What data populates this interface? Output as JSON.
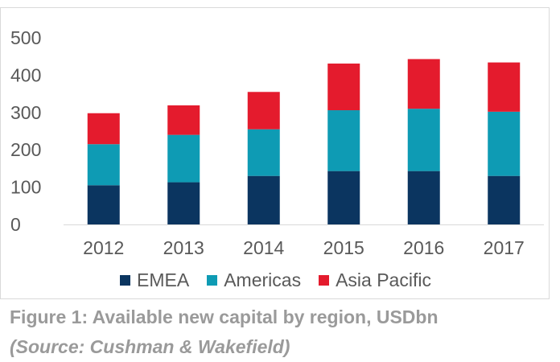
{
  "chart_data": {
    "type": "bar",
    "stacked": true,
    "categories": [
      "2012",
      "2013",
      "2014",
      "2015",
      "2016",
      "2017"
    ],
    "series": [
      {
        "name": "EMEA",
        "color": "#0b3560",
        "values": [
          105,
          113,
          130,
          143,
          143,
          130
        ]
      },
      {
        "name": "Americas",
        "color": "#0e9bb4",
        "values": [
          110,
          127,
          125,
          163,
          167,
          172
        ]
      },
      {
        "name": "Asia Pacific",
        "color": "#e41b2d",
        "values": [
          83,
          79,
          100,
          125,
          133,
          132
        ]
      }
    ],
    "yticks": [
      0,
      100,
      200,
      300,
      400,
      500
    ],
    "ylim": [
      0,
      500
    ],
    "grid": false,
    "legend": "bottom"
  },
  "caption": {
    "title": "Figure 1: Available new capital by region, USDbn",
    "source": "(Source: Cushman & Wakefield)"
  }
}
